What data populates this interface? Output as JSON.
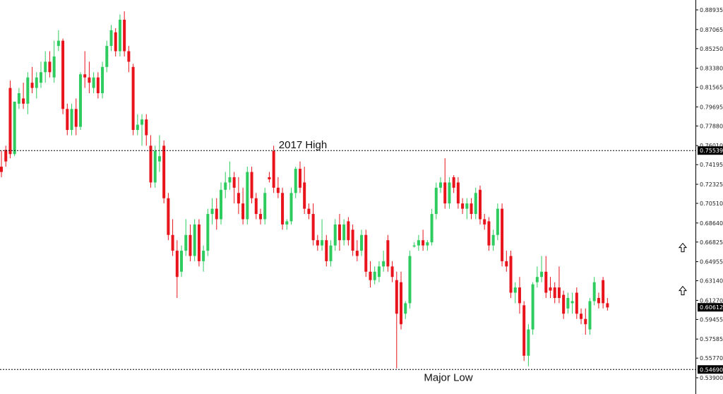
{
  "chart_data": {
    "type": "candlestick",
    "title": "",
    "xlabel": "",
    "ylabel": "",
    "ylim": [
      0.539,
      0.89
    ],
    "y_ticks": [
      "0.88935",
      "0.87065",
      "0.85250",
      "0.83380",
      "0.81565",
      "0.79695",
      "0.77880",
      "0.76010",
      "0.74195",
      "0.72325",
      "0.70510",
      "0.68640",
      "0.66825",
      "0.64955",
      "0.63140",
      "0.61270",
      "0.59455",
      "0.57585",
      "0.55770",
      "0.53900"
    ],
    "grid": false,
    "colors": {
      "up": "#2ecc5f",
      "down": "#e8131b",
      "line": "#000000"
    },
    "levels": [
      {
        "name": "2017-high-level",
        "value": 0.75539,
        "label": "0.75539",
        "annotation": "2017 High"
      },
      {
        "name": "major-low-level",
        "value": 0.5469,
        "label": "0.54690",
        "annotation": "Major Low"
      }
    ],
    "last_price": {
      "value": 0.60612,
      "label": "0.60612"
    },
    "arrows": [
      {
        "name": "up-arrow-upper-icon",
        "price": 0.663
      },
      {
        "name": "up-arrow-lower-icon",
        "price": 0.622
      }
    ],
    "candles": [
      {
        "o": 0.74,
        "h": 0.755,
        "l": 0.73,
        "c": 0.735
      },
      {
        "o": 0.756,
        "h": 0.76,
        "l": 0.74,
        "c": 0.745
      },
      {
        "o": 0.815,
        "h": 0.822,
        "l": 0.748,
        "c": 0.752
      },
      {
        "o": 0.752,
        "h": 0.8,
        "l": 0.75,
        "c": 0.802
      },
      {
        "o": 0.8,
        "h": 0.815,
        "l": 0.795,
        "c": 0.81
      },
      {
        "o": 0.805,
        "h": 0.82,
        "l": 0.795,
        "c": 0.8
      },
      {
        "o": 0.8,
        "h": 0.83,
        "l": 0.79,
        "c": 0.825
      },
      {
        "o": 0.82,
        "h": 0.835,
        "l": 0.81,
        "c": 0.815
      },
      {
        "o": 0.815,
        "h": 0.83,
        "l": 0.805,
        "c": 0.825
      },
      {
        "o": 0.82,
        "h": 0.84,
        "l": 0.815,
        "c": 0.83
      },
      {
        "o": 0.83,
        "h": 0.85,
        "l": 0.82,
        "c": 0.84
      },
      {
        "o": 0.84,
        "h": 0.85,
        "l": 0.825,
        "c": 0.83
      },
      {
        "o": 0.825,
        "h": 0.86,
        "l": 0.82,
        "c": 0.845
      },
      {
        "o": 0.855,
        "h": 0.87,
        "l": 0.85,
        "c": 0.86
      },
      {
        "o": 0.86,
        "h": 0.862,
        "l": 0.79,
        "c": 0.795
      },
      {
        "o": 0.795,
        "h": 0.8,
        "l": 0.77,
        "c": 0.775
      },
      {
        "o": 0.775,
        "h": 0.8,
        "l": 0.77,
        "c": 0.795
      },
      {
        "o": 0.795,
        "h": 0.805,
        "l": 0.77,
        "c": 0.778
      },
      {
        "o": 0.778,
        "h": 0.83,
        "l": 0.775,
        "c": 0.828
      },
      {
        "o": 0.828,
        "h": 0.85,
        "l": 0.815,
        "c": 0.825
      },
      {
        "o": 0.825,
        "h": 0.84,
        "l": 0.81,
        "c": 0.82
      },
      {
        "o": 0.815,
        "h": 0.83,
        "l": 0.81,
        "c": 0.825
      },
      {
        "o": 0.825,
        "h": 0.83,
        "l": 0.805,
        "c": 0.81
      },
      {
        "o": 0.81,
        "h": 0.84,
        "l": 0.805,
        "c": 0.835
      },
      {
        "o": 0.835,
        "h": 0.86,
        "l": 0.83,
        "c": 0.855
      },
      {
        "o": 0.855,
        "h": 0.875,
        "l": 0.85,
        "c": 0.87
      },
      {
        "o": 0.868,
        "h": 0.872,
        "l": 0.845,
        "c": 0.85
      },
      {
        "o": 0.85,
        "h": 0.885,
        "l": 0.845,
        "c": 0.88
      },
      {
        "o": 0.88,
        "h": 0.888,
        "l": 0.845,
        "c": 0.85
      },
      {
        "o": 0.85,
        "h": 0.855,
        "l": 0.83,
        "c": 0.84
      },
      {
        "o": 0.835,
        "h": 0.838,
        "l": 0.77,
        "c": 0.775
      },
      {
        "o": 0.775,
        "h": 0.79,
        "l": 0.77,
        "c": 0.78
      },
      {
        "o": 0.78,
        "h": 0.79,
        "l": 0.76,
        "c": 0.785
      },
      {
        "o": 0.785,
        "h": 0.79,
        "l": 0.76,
        "c": 0.77
      },
      {
        "o": 0.76,
        "h": 0.77,
        "l": 0.72,
        "c": 0.725
      },
      {
        "o": 0.725,
        "h": 0.76,
        "l": 0.72,
        "c": 0.755
      },
      {
        "o": 0.745,
        "h": 0.77,
        "l": 0.735,
        "c": 0.75
      },
      {
        "o": 0.76,
        "h": 0.765,
        "l": 0.705,
        "c": 0.71
      },
      {
        "o": 0.71,
        "h": 0.715,
        "l": 0.67,
        "c": 0.675
      },
      {
        "o": 0.675,
        "h": 0.69,
        "l": 0.655,
        "c": 0.66
      },
      {
        "o": 0.66,
        "h": 0.67,
        "l": 0.615,
        "c": 0.635
      },
      {
        "o": 0.64,
        "h": 0.665,
        "l": 0.635,
        "c": 0.66
      },
      {
        "o": 0.66,
        "h": 0.69,
        "l": 0.655,
        "c": 0.675
      },
      {
        "o": 0.675,
        "h": 0.685,
        "l": 0.65,
        "c": 0.655
      },
      {
        "o": 0.655,
        "h": 0.69,
        "l": 0.65,
        "c": 0.685
      },
      {
        "o": 0.685,
        "h": 0.69,
        "l": 0.645,
        "c": 0.65
      },
      {
        "o": 0.65,
        "h": 0.665,
        "l": 0.64,
        "c": 0.66
      },
      {
        "o": 0.66,
        "h": 0.7,
        "l": 0.655,
        "c": 0.695
      },
      {
        "o": 0.695,
        "h": 0.71,
        "l": 0.685,
        "c": 0.7
      },
      {
        "o": 0.7,
        "h": 0.71,
        "l": 0.68,
        "c": 0.69
      },
      {
        "o": 0.69,
        "h": 0.725,
        "l": 0.685,
        "c": 0.718
      },
      {
        "o": 0.718,
        "h": 0.735,
        "l": 0.71,
        "c": 0.725
      },
      {
        "o": 0.725,
        "h": 0.745,
        "l": 0.718,
        "c": 0.73
      },
      {
        "o": 0.73,
        "h": 0.735,
        "l": 0.705,
        "c": 0.72
      },
      {
        "o": 0.715,
        "h": 0.73,
        "l": 0.695,
        "c": 0.705
      },
      {
        "o": 0.705,
        "h": 0.72,
        "l": 0.685,
        "c": 0.69
      },
      {
        "o": 0.69,
        "h": 0.74,
        "l": 0.685,
        "c": 0.735
      },
      {
        "o": 0.735,
        "h": 0.74,
        "l": 0.705,
        "c": 0.71
      },
      {
        "o": 0.71,
        "h": 0.715,
        "l": 0.69,
        "c": 0.695
      },
      {
        "o": 0.695,
        "h": 0.7,
        "l": 0.685,
        "c": 0.69
      },
      {
        "o": 0.69,
        "h": 0.72,
        "l": 0.685,
        "c": 0.715
      },
      {
        "o": 0.73,
        "h": 0.735,
        "l": 0.725,
        "c": 0.728
      },
      {
        "o": 0.755,
        "h": 0.76,
        "l": 0.715,
        "c": 0.72
      },
      {
        "o": 0.72,
        "h": 0.73,
        "l": 0.71,
        "c": 0.715
      },
      {
        "o": 0.715,
        "h": 0.72,
        "l": 0.68,
        "c": 0.685
      },
      {
        "o": 0.685,
        "h": 0.69,
        "l": 0.68,
        "c": 0.688
      },
      {
        "o": 0.688,
        "h": 0.72,
        "l": 0.685,
        "c": 0.715
      },
      {
        "o": 0.715,
        "h": 0.74,
        "l": 0.71,
        "c": 0.738
      },
      {
        "o": 0.738,
        "h": 0.745,
        "l": 0.715,
        "c": 0.72
      },
      {
        "o": 0.725,
        "h": 0.74,
        "l": 0.695,
        "c": 0.7
      },
      {
        "o": 0.7,
        "h": 0.705,
        "l": 0.69,
        "c": 0.695
      },
      {
        "o": 0.695,
        "h": 0.705,
        "l": 0.665,
        "c": 0.67
      },
      {
        "o": 0.67,
        "h": 0.675,
        "l": 0.66,
        "c": 0.665
      },
      {
        "o": 0.665,
        "h": 0.69,
        "l": 0.66,
        "c": 0.67
      },
      {
        "o": 0.67,
        "h": 0.675,
        "l": 0.645,
        "c": 0.65
      },
      {
        "o": 0.65,
        "h": 0.67,
        "l": 0.645,
        "c": 0.665
      },
      {
        "o": 0.665,
        "h": 0.69,
        "l": 0.66,
        "c": 0.685
      },
      {
        "o": 0.685,
        "h": 0.695,
        "l": 0.66,
        "c": 0.67
      },
      {
        "o": 0.67,
        "h": 0.69,
        "l": 0.665,
        "c": 0.685
      },
      {
        "o": 0.688,
        "h": 0.692,
        "l": 0.665,
        "c": 0.67
      },
      {
        "o": 0.68,
        "h": 0.685,
        "l": 0.655,
        "c": 0.66
      },
      {
        "o": 0.66,
        "h": 0.67,
        "l": 0.65,
        "c": 0.655
      },
      {
        "o": 0.66,
        "h": 0.68,
        "l": 0.655,
        "c": 0.675
      },
      {
        "o": 0.675,
        "h": 0.68,
        "l": 0.635,
        "c": 0.64
      },
      {
        "o": 0.64,
        "h": 0.65,
        "l": 0.625,
        "c": 0.632
      },
      {
        "o": 0.632,
        "h": 0.645,
        "l": 0.628,
        "c": 0.64
      },
      {
        "o": 0.635,
        "h": 0.65,
        "l": 0.63,
        "c": 0.645
      },
      {
        "o": 0.645,
        "h": 0.66,
        "l": 0.64,
        "c": 0.65
      },
      {
        "o": 0.67,
        "h": 0.675,
        "l": 0.64,
        "c": 0.645
      },
      {
        "o": 0.645,
        "h": 0.65,
        "l": 0.63,
        "c": 0.635
      },
      {
        "o": 0.632,
        "h": 0.64,
        "l": 0.548,
        "c": 0.6
      },
      {
        "o": 0.63,
        "h": 0.64,
        "l": 0.585,
        "c": 0.59
      },
      {
        "o": 0.6,
        "h": 0.612,
        "l": 0.595,
        "c": 0.61
      },
      {
        "o": 0.61,
        "h": 0.66,
        "l": 0.605,
        "c": 0.655
      },
      {
        "o": 0.665,
        "h": 0.668,
        "l": 0.663,
        "c": 0.665
      },
      {
        "o": 0.665,
        "h": 0.675,
        "l": 0.66,
        "c": 0.67
      },
      {
        "o": 0.67,
        "h": 0.68,
        "l": 0.66,
        "c": 0.665
      },
      {
        "o": 0.665,
        "h": 0.67,
        "l": 0.66,
        "c": 0.668
      },
      {
        "o": 0.668,
        "h": 0.7,
        "l": 0.665,
        "c": 0.695
      },
      {
        "o": 0.695,
        "h": 0.725,
        "l": 0.69,
        "c": 0.72
      },
      {
        "o": 0.72,
        "h": 0.73,
        "l": 0.715,
        "c": 0.725
      },
      {
        "o": 0.725,
        "h": 0.748,
        "l": 0.7,
        "c": 0.705
      },
      {
        "o": 0.705,
        "h": 0.73,
        "l": 0.7,
        "c": 0.725
      },
      {
        "o": 0.73,
        "h": 0.732,
        "l": 0.715,
        "c": 0.72
      },
      {
        "o": 0.725,
        "h": 0.73,
        "l": 0.7,
        "c": 0.705
      },
      {
        "o": 0.705,
        "h": 0.71,
        "l": 0.695,
        "c": 0.7
      },
      {
        "o": 0.7,
        "h": 0.71,
        "l": 0.69,
        "c": 0.705
      },
      {
        "o": 0.705,
        "h": 0.71,
        "l": 0.69,
        "c": 0.695
      },
      {
        "o": 0.695,
        "h": 0.72,
        "l": 0.69,
        "c": 0.715
      },
      {
        "o": 0.718,
        "h": 0.722,
        "l": 0.685,
        "c": 0.69
      },
      {
        "o": 0.69,
        "h": 0.695,
        "l": 0.68,
        "c": 0.685
      },
      {
        "o": 0.688,
        "h": 0.692,
        "l": 0.66,
        "c": 0.665
      },
      {
        "o": 0.665,
        "h": 0.68,
        "l": 0.66,
        "c": 0.675
      },
      {
        "o": 0.675,
        "h": 0.705,
        "l": 0.67,
        "c": 0.7
      },
      {
        "o": 0.7,
        "h": 0.705,
        "l": 0.645,
        "c": 0.65
      },
      {
        "o": 0.65,
        "h": 0.66,
        "l": 0.64,
        "c": 0.645
      },
      {
        "o": 0.655,
        "h": 0.66,
        "l": 0.615,
        "c": 0.62
      },
      {
        "o": 0.62,
        "h": 0.63,
        "l": 0.61,
        "c": 0.625
      },
      {
        "o": 0.625,
        "h": 0.635,
        "l": 0.6,
        "c": 0.61
      },
      {
        "o": 0.608,
        "h": 0.612,
        "l": 0.555,
        "c": 0.56
      },
      {
        "o": 0.56,
        "h": 0.59,
        "l": 0.55,
        "c": 0.585
      },
      {
        "o": 0.585,
        "h": 0.63,
        "l": 0.58,
        "c": 0.628
      },
      {
        "o": 0.63,
        "h": 0.645,
        "l": 0.625,
        "c": 0.635
      },
      {
        "o": 0.635,
        "h": 0.655,
        "l": 0.63,
        "c": 0.64
      },
      {
        "o": 0.64,
        "h": 0.655,
        "l": 0.615,
        "c": 0.62
      },
      {
        "o": 0.625,
        "h": 0.635,
        "l": 0.615,
        "c": 0.622
      },
      {
        "o": 0.625,
        "h": 0.63,
        "l": 0.61,
        "c": 0.615
      },
      {
        "o": 0.625,
        "h": 0.645,
        "l": 0.61,
        "c": 0.615
      },
      {
        "o": 0.618,
        "h": 0.622,
        "l": 0.595,
        "c": 0.6
      },
      {
        "o": 0.605,
        "h": 0.62,
        "l": 0.6,
        "c": 0.615
      },
      {
        "o": 0.61,
        "h": 0.62,
        "l": 0.6,
        "c": 0.612
      },
      {
        "o": 0.62,
        "h": 0.625,
        "l": 0.595,
        "c": 0.6
      },
      {
        "o": 0.6,
        "h": 0.605,
        "l": 0.59,
        "c": 0.595
      },
      {
        "o": 0.595,
        "h": 0.605,
        "l": 0.58,
        "c": 0.59
      },
      {
        "o": 0.585,
        "h": 0.615,
        "l": 0.58,
        "c": 0.612
      },
      {
        "o": 0.612,
        "h": 0.635,
        "l": 0.608,
        "c": 0.63
      },
      {
        "o": 0.615,
        "h": 0.62,
        "l": 0.605,
        "c": 0.61
      },
      {
        "o": 0.632,
        "h": 0.635,
        "l": 0.605,
        "c": 0.61
      },
      {
        "o": 0.61,
        "h": 0.615,
        "l": 0.603,
        "c": 0.606
      }
    ]
  }
}
